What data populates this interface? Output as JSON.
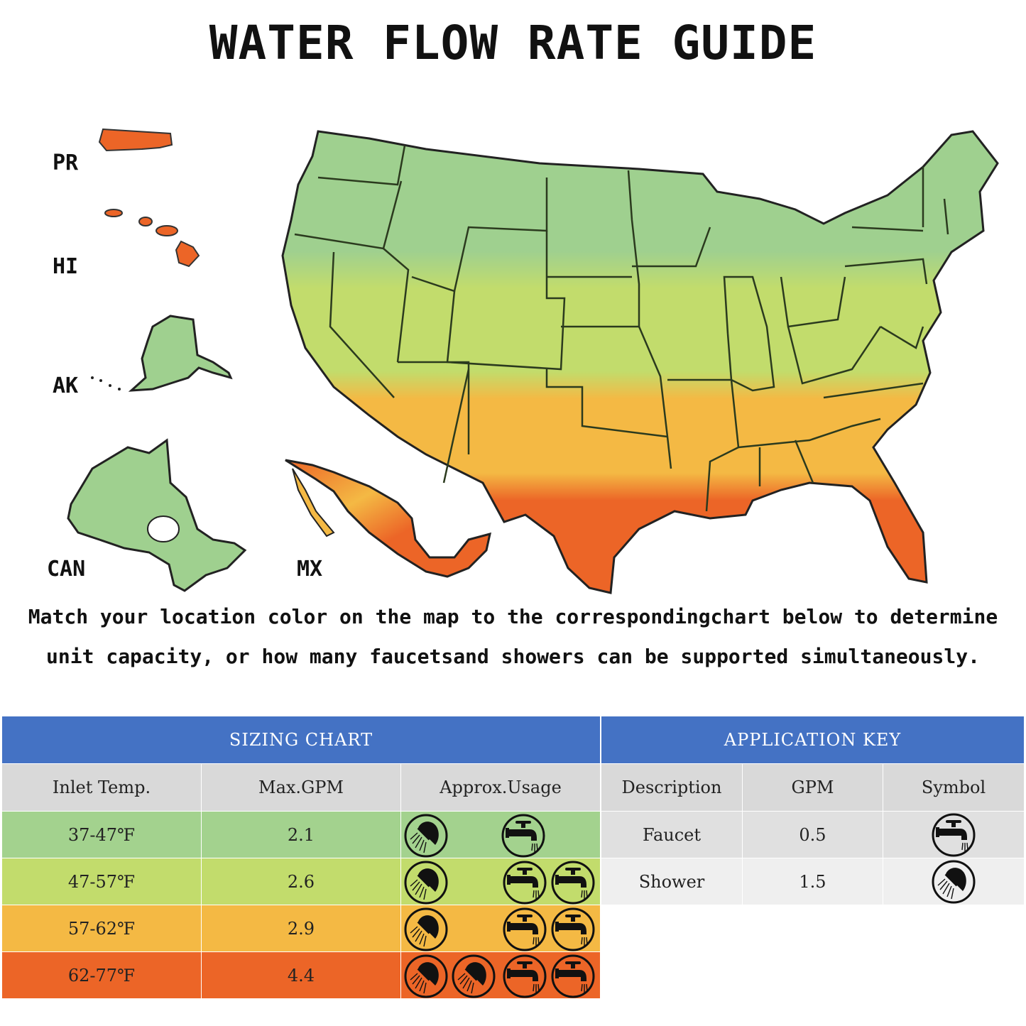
{
  "title": "WATER FLOW RATE GUIDE",
  "map": {
    "labels": {
      "pr": "PR",
      "hi": "HI",
      "ak": "AK",
      "can": "CAN",
      "mx": "MX"
    },
    "zone_colors": [
      "#a3d28e",
      "#c2dc6c",
      "#f4b944",
      "#ec6527"
    ]
  },
  "caption": {
    "line1": "Match your location color on the map to the correspondingchart below to determine",
    "line2": "unit capacity, or how many faucetsand showers can be supported simultaneously."
  },
  "sizing_chart": {
    "title": "SIZING CHART",
    "headers": [
      "Inlet Temp.",
      "Max.GPM",
      "Approx.Usage"
    ],
    "rows": [
      {
        "temp": "37-47℉",
        "gpm": "2.1",
        "showers": 1,
        "faucets": 1,
        "color": "#a3d28e"
      },
      {
        "temp": "47-57℉",
        "gpm": "2.6",
        "showers": 1,
        "faucets": 2,
        "color": "#c2dc6c"
      },
      {
        "temp": "57-62℉",
        "gpm": "2.9",
        "showers": 1,
        "faucets": 2,
        "color": "#f4b944"
      },
      {
        "temp": "62-77℉",
        "gpm": "4.4",
        "showers": 2,
        "faucets": 2,
        "color": "#ec6527"
      }
    ]
  },
  "application_key": {
    "title": "APPLICATION KEY",
    "headers": [
      "Description",
      "GPM",
      "Symbol"
    ],
    "rows": [
      {
        "description": "Faucet",
        "gpm": "0.5",
        "symbol": "faucet-icon"
      },
      {
        "description": "Shower",
        "gpm": "1.5",
        "symbol": "shower-icon"
      }
    ]
  }
}
